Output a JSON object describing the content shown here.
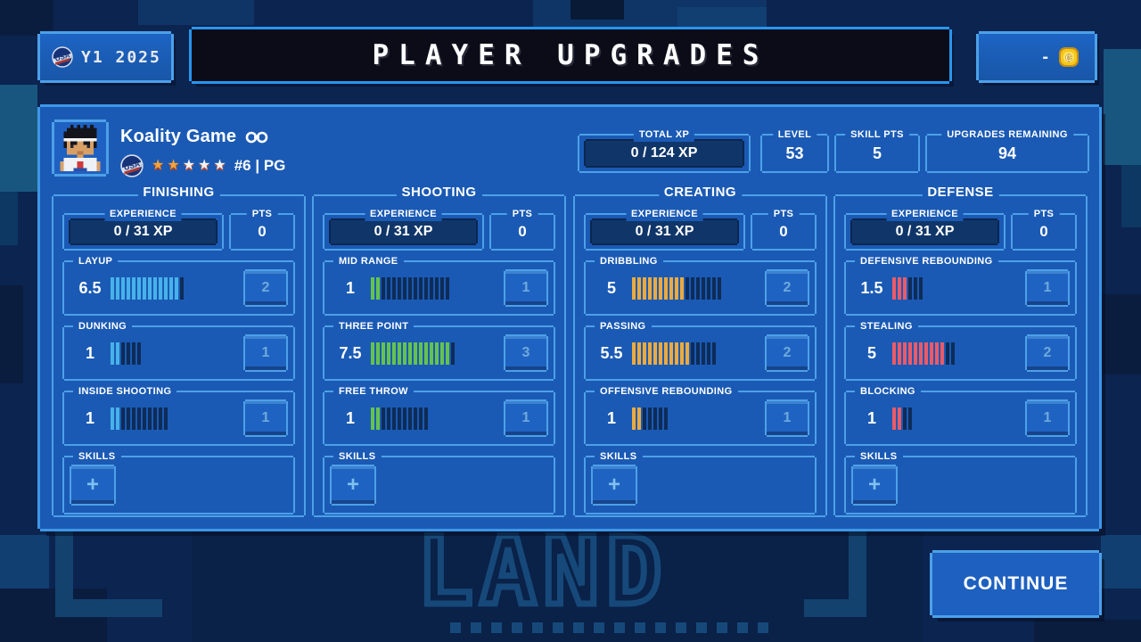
{
  "theme": {
    "panel": "#1a5ab4",
    "accent_border": "#4da0e8",
    "bar_empty": "#0e2c58",
    "coin_gold": "#f6c81c"
  },
  "topbar": {
    "season": "Y1 2025",
    "title": "PLAYER UPGRADES",
    "coin_value": "-"
  },
  "player": {
    "name": "Koality Game",
    "position": "#6 | PG",
    "stars_filled": 2,
    "stars_total": 5
  },
  "summary": {
    "xp_label": "TOTAL XP",
    "xp_value": "0 / 124 XP",
    "level_label": "LEVEL",
    "level_value": "53",
    "skill_label": "SKILL PTS",
    "skill_value": "5",
    "upgrades_label": "UPGRADES REMAINING",
    "upgrades_value": "94"
  },
  "columns": [
    {
      "title": "FINISHING",
      "color": "#47b2ea",
      "experience_label": "EXPERIENCE",
      "experience_value": "0 / 31 XP",
      "pts_label": "PTS",
      "pts_value": "0",
      "skills_label": "SKILLS",
      "add_label": "+",
      "stats": [
        {
          "label": "LAYUP",
          "value": "6.5",
          "filled": 13,
          "total": 14,
          "cost": "2"
        },
        {
          "label": "DUNKING",
          "value": "1",
          "filled": 2,
          "total": 6,
          "cost": "1"
        },
        {
          "label": "INSIDE SHOOTING",
          "value": "1",
          "filled": 2,
          "total": 11,
          "cost": "1"
        }
      ]
    },
    {
      "title": "SHOOTING",
      "color": "#66c24f",
      "experience_label": "EXPERIENCE",
      "experience_value": "0 / 31 XP",
      "pts_label": "PTS",
      "pts_value": "0",
      "skills_label": "SKILLS",
      "add_label": "+",
      "stats": [
        {
          "label": "MID RANGE",
          "value": "1",
          "filled": 2,
          "total": 15,
          "cost": "1"
        },
        {
          "label": "THREE POINT",
          "value": "7.5",
          "filled": 15,
          "total": 16,
          "cost": "3"
        },
        {
          "label": "FREE THROW",
          "value": "1",
          "filled": 2,
          "total": 11,
          "cost": "1"
        }
      ]
    },
    {
      "title": "CREATING",
      "color": "#ecaa3e",
      "experience_label": "EXPERIENCE",
      "experience_value": "0 / 31 XP",
      "pts_label": "PTS",
      "pts_value": "0",
      "skills_label": "SKILLS",
      "add_label": "+",
      "stats": [
        {
          "label": "DRIBBLING",
          "value": "5",
          "filled": 10,
          "total": 17,
          "cost": "2"
        },
        {
          "label": "PASSING",
          "value": "5.5",
          "filled": 11,
          "total": 16,
          "cost": "2"
        },
        {
          "label": "OFFENSIVE REBOUNDING",
          "value": "1",
          "filled": 2,
          "total": 7,
          "cost": "1"
        }
      ]
    },
    {
      "title": "DEFENSE",
      "color": "#ec5a67",
      "experience_label": "EXPERIENCE",
      "experience_value": "0 / 31 XP",
      "pts_label": "PTS",
      "pts_value": "0",
      "skills_label": "SKILLS",
      "add_label": "+",
      "stats": [
        {
          "label": "DEFENSIVE REBOUNDING",
          "value": "1.5",
          "filled": 3,
          "total": 6,
          "cost": "1"
        },
        {
          "label": "STEALING",
          "value": "5",
          "filled": 10,
          "total": 12,
          "cost": "2"
        },
        {
          "label": "BLOCKING",
          "value": "1",
          "filled": 2,
          "total": 4,
          "cost": "1"
        }
      ]
    }
  ],
  "footer": {
    "continue_label": "CONTINUE"
  },
  "background": {
    "text": "LAND"
  }
}
